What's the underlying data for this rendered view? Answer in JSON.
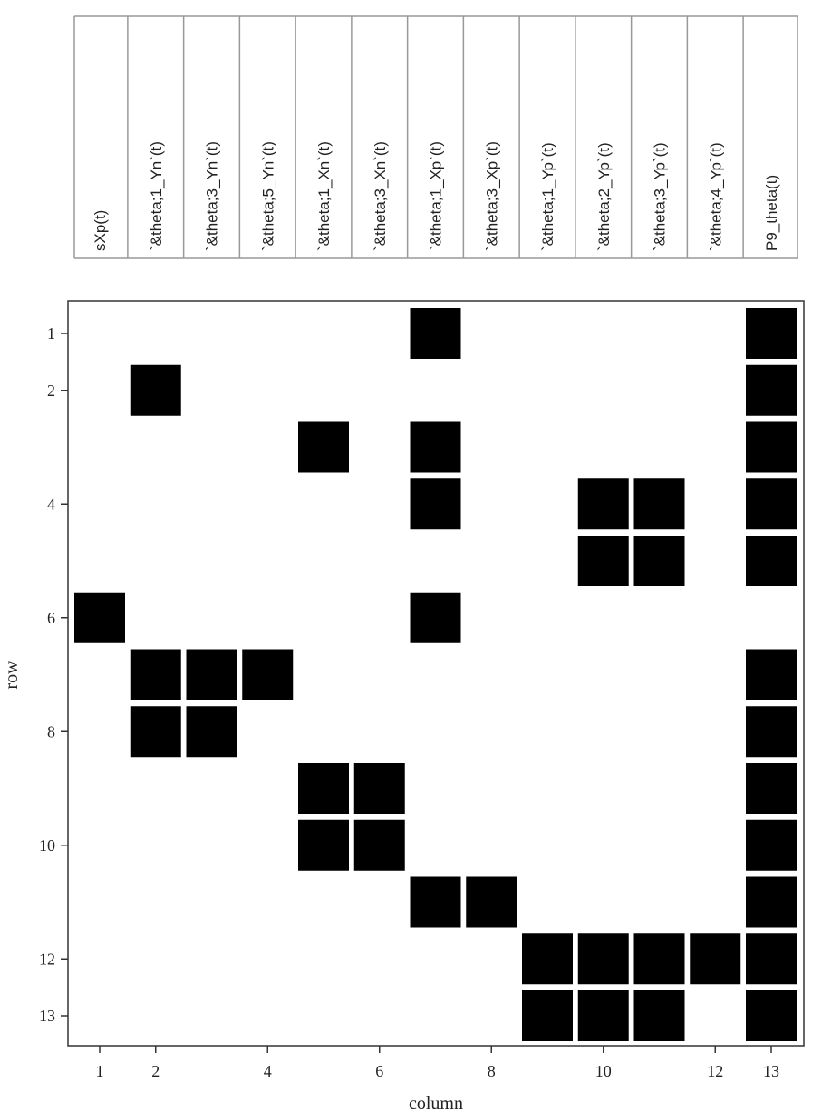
{
  "chart_data": {
    "type": "heatmap",
    "xlabel": "column",
    "ylabel": "row",
    "x_ticks": [
      1,
      2,
      4,
      6,
      8,
      10,
      12,
      13
    ],
    "y_ticks": [
      1,
      2,
      4,
      6,
      8,
      10,
      12,
      13
    ],
    "xlim": [
      1,
      13
    ],
    "ylim": [
      1,
      13
    ],
    "column_headers": [
      "sXp(t)",
      "`&theta;1_Yn`(t)",
      "`&theta;3_Yn`(t)",
      "`&theta;5_Yn`(t)",
      "`&theta;1_Xn`(t)",
      "`&theta;3_Xn`(t)",
      "`&theta;1_Xp`(t)",
      "`&theta;3_Xp`(t)",
      "`&theta;1_Yp`(t)",
      "`&theta;2_Yp`(t)",
      "`&theta;3_Yp`(t)",
      "`&theta;4_Yp`(t)",
      "P9_theta(t)"
    ],
    "filled_cells": [
      {
        "row": 1,
        "column": 7
      },
      {
        "row": 1,
        "column": 13
      },
      {
        "row": 2,
        "column": 2
      },
      {
        "row": 2,
        "column": 13
      },
      {
        "row": 3,
        "column": 5
      },
      {
        "row": 3,
        "column": 7
      },
      {
        "row": 3,
        "column": 13
      },
      {
        "row": 4,
        "column": 7
      },
      {
        "row": 4,
        "column": 10
      },
      {
        "row": 4,
        "column": 11
      },
      {
        "row": 4,
        "column": 13
      },
      {
        "row": 5,
        "column": 10
      },
      {
        "row": 5,
        "column": 11
      },
      {
        "row": 5,
        "column": 13
      },
      {
        "row": 6,
        "column": 1
      },
      {
        "row": 6,
        "column": 7
      },
      {
        "row": 7,
        "column": 2
      },
      {
        "row": 7,
        "column": 3
      },
      {
        "row": 7,
        "column": 4
      },
      {
        "row": 7,
        "column": 13
      },
      {
        "row": 8,
        "column": 2
      },
      {
        "row": 8,
        "column": 3
      },
      {
        "row": 8,
        "column": 13
      },
      {
        "row": 9,
        "column": 5
      },
      {
        "row": 9,
        "column": 6
      },
      {
        "row": 9,
        "column": 13
      },
      {
        "row": 10,
        "column": 5
      },
      {
        "row": 10,
        "column": 6
      },
      {
        "row": 10,
        "column": 13
      },
      {
        "row": 11,
        "column": 7
      },
      {
        "row": 11,
        "column": 8
      },
      {
        "row": 11,
        "column": 13
      },
      {
        "row": 12,
        "column": 9
      },
      {
        "row": 12,
        "column": 10
      },
      {
        "row": 12,
        "column": 11
      },
      {
        "row": 12,
        "column": 12
      },
      {
        "row": 12,
        "column": 13
      },
      {
        "row": 13,
        "column": 9
      },
      {
        "row": 13,
        "column": 10
      },
      {
        "row": 13,
        "column": 11
      },
      {
        "row": 13,
        "column": 13
      }
    ],
    "fill_color": "#000000",
    "grid": false,
    "legend": "none"
  }
}
